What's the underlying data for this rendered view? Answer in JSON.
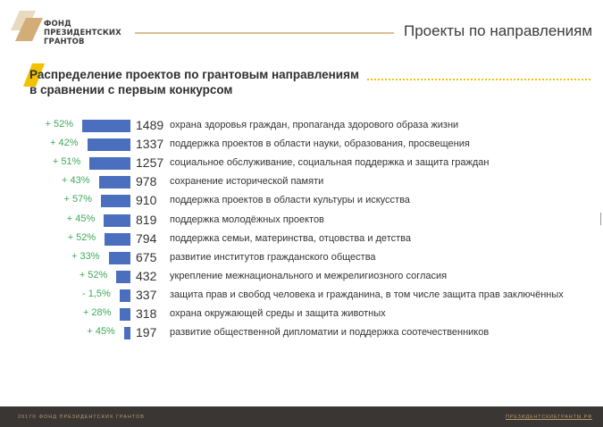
{
  "header": {
    "brand_lines": [
      "ФОНД",
      "ПРЕЗИДЕНТСКИХ",
      "ГРАНТОВ"
    ],
    "page_title": "Проекты по направлениям"
  },
  "colors": {
    "bar": "#4a6fbf",
    "percent": "#3faa5a",
    "accent_gold": "#d9bf8f",
    "accent_yellow": "#f2c200",
    "footer_bg": "#3a3633"
  },
  "chart_data": {
    "type": "bar",
    "orientation": "horizontal",
    "title": "Распределение проектов по грантовым направлениям в сравнении с первым конкурсом",
    "title_lines": [
      "Распределение проектов по грантовым направлениям",
      "в сравнении с первым конкурсом"
    ],
    "categories": [
      "охрана здоровья граждан, пропаганда здорового образа жизни",
      "поддержка проектов в области науки, образования, просвещения",
      "социальное обслуживание, социальная поддержка и защита граждан",
      "сохранение исторической памяти",
      "поддержка проектов в области культуры и искусства",
      "поддержка молодёжных проектов",
      "поддержка семьи, материнства, отцовства и детства",
      "развитие институтов гражданского общества",
      "укрепление межнационального и межрелигиозного согласия",
      "защита прав и свобод человека и гражданина, в том числе защита прав заключённых",
      "охрана окружающей среды и защита животных",
      "развитие общественной дипломатии и поддержка соотечественников"
    ],
    "values": [
      1489,
      1337,
      1257,
      978,
      910,
      819,
      794,
      675,
      432,
      337,
      318,
      197
    ],
    "value_labels": [
      "1489",
      "1337",
      "1257",
      "978",
      "910",
      "819",
      "794",
      "675",
      "432",
      "337",
      "318",
      "197"
    ],
    "change_labels": [
      "+ 52%",
      "+ 42%",
      "+ 51%",
      "+ 43%",
      "+ 57%",
      "+ 45%",
      "+ 52%",
      "+ 33%",
      "+ 52%",
      "- 1,5%",
      "+ 28%",
      "+ 45%"
    ],
    "xlim": [
      0,
      1489
    ],
    "grid": false,
    "legend": "none"
  },
  "footer": {
    "left": "2017© ФОНД ПРЕЗИДЕНТСКИХ ГРАНТОВ",
    "right": "ПРЕЗИДЕНТСКИЕГРАНТЫ.РФ"
  }
}
